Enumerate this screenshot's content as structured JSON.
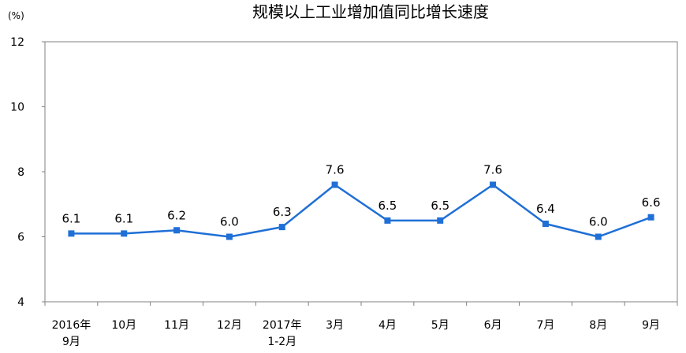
{
  "chart_data": {
    "type": "line",
    "title": "规模以上工业增加值同比增长速度",
    "unit_label": "(%)",
    "ylim": [
      4,
      12
    ],
    "yticks": [
      "4",
      "6",
      "8",
      "10",
      "12"
    ],
    "categories": [
      [
        "2016年",
        "9月"
      ],
      [
        "10月"
      ],
      [
        "11月"
      ],
      [
        "12月"
      ],
      [
        "2017年",
        "1-2月"
      ],
      [
        "3月"
      ],
      [
        "4月"
      ],
      [
        "5月"
      ],
      [
        "6月"
      ],
      [
        "7月"
      ],
      [
        "8月"
      ],
      [
        "9月"
      ]
    ],
    "values": [
      6.1,
      6.1,
      6.2,
      6.0,
      6.3,
      7.6,
      6.5,
      6.5,
      7.6,
      6.4,
      6.0,
      6.6
    ],
    "value_labels": [
      "6.1",
      "6.1",
      "6.2",
      "6.0",
      "6.3",
      "7.6",
      "6.5",
      "6.5",
      "7.6",
      "6.4",
      "6.0",
      "6.6"
    ],
    "grid": false,
    "legend": "none",
    "series_color": "#1F6FD6",
    "axis_color": "#808080"
  }
}
